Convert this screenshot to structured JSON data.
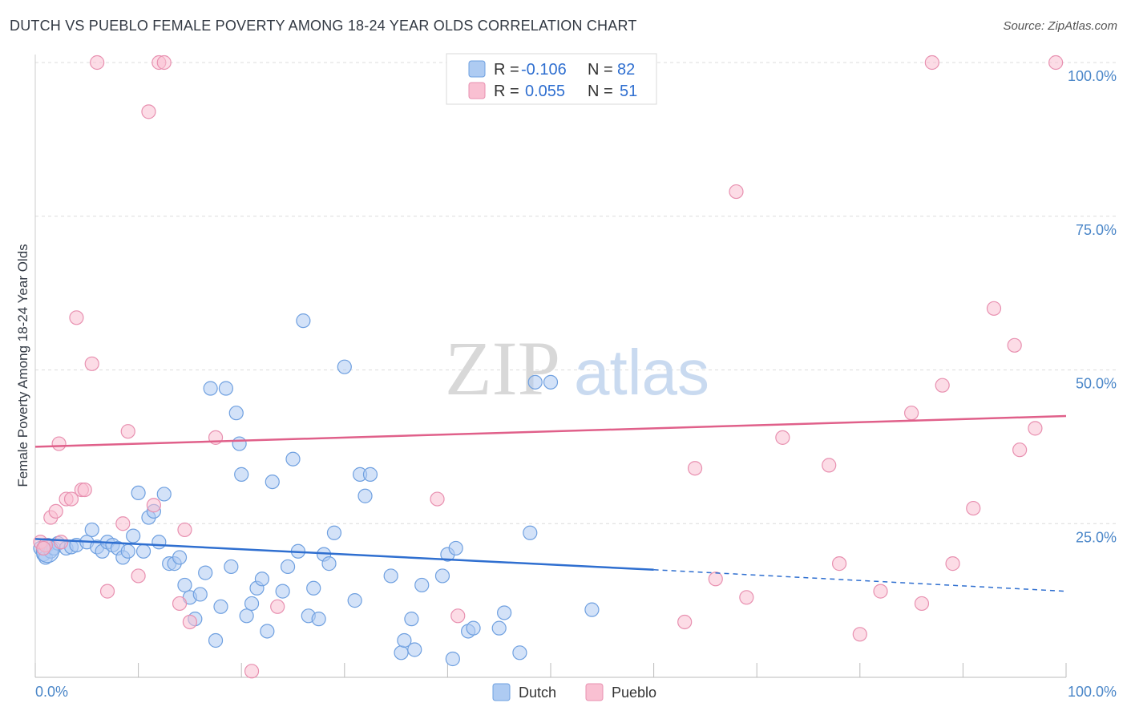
{
  "title": "DUTCH VS PUEBLO FEMALE POVERTY AMONG 18-24 YEAR OLDS CORRELATION CHART",
  "source": "Source: ZipAtlas.com",
  "watermark": {
    "zip": "ZIP",
    "atlas": "atlas"
  },
  "legend_top": {
    "rows": [
      {
        "r_label": "R =",
        "r_value": "-0.106",
        "n_label": "N =",
        "n_value": "82",
        "color": "#aecbf2"
      },
      {
        "r_label": "R =",
        "r_value": "0.055",
        "n_label": "N =",
        "n_value": "51",
        "color": "#f9c0d2"
      }
    ]
  },
  "legend_bottom": [
    {
      "label": "Dutch",
      "color": "#aecbf2"
    },
    {
      "label": "Pueblo",
      "color": "#f9c0d2"
    }
  ],
  "chart_data": {
    "type": "scatter",
    "title": "DUTCH VS PUEBLO FEMALE POVERTY AMONG 18-24 YEAR OLDS CORRELATION CHART",
    "xlabel": "",
    "ylabel": "Female Poverty Among 18-24 Year Olds",
    "xlim": [
      0,
      100
    ],
    "ylim": [
      0,
      100
    ],
    "x_tick_labels": [
      "0.0%",
      "100.0%"
    ],
    "y_tick_labels": [
      "25.0%",
      "50.0%",
      "75.0%",
      "100.0%"
    ],
    "y_ticks": [
      25,
      50,
      75,
      100
    ],
    "grid": true,
    "legend_position": "top-center",
    "series": [
      {
        "name": "Dutch",
        "color": "#6fa0e0",
        "fill": "#aecbf2",
        "points": [
          [
            0.5,
            21.0
          ],
          [
            0.8,
            20.0
          ],
          [
            1.0,
            19.5
          ],
          [
            1.2,
            21.5
          ],
          [
            1.5,
            20.5
          ],
          [
            1.8,
            21.0
          ],
          [
            2.2,
            21.8
          ],
          [
            3.0,
            21.0
          ],
          [
            3.5,
            21.2
          ],
          [
            4.0,
            21.5
          ],
          [
            5.0,
            22.0
          ],
          [
            5.5,
            24.0
          ],
          [
            6.0,
            21.2
          ],
          [
            6.5,
            20.5
          ],
          [
            7.0,
            22.0
          ],
          [
            7.5,
            21.5
          ],
          [
            8.0,
            21.0
          ],
          [
            8.5,
            19.5
          ],
          [
            9.0,
            20.5
          ],
          [
            9.5,
            23.0
          ],
          [
            10.0,
            30.0
          ],
          [
            10.5,
            20.5
          ],
          [
            11.0,
            26.0
          ],
          [
            11.5,
            27.0
          ],
          [
            12.0,
            22.0
          ],
          [
            12.5,
            29.8
          ],
          [
            13.0,
            18.5
          ],
          [
            13.5,
            18.5
          ],
          [
            14.0,
            19.5
          ],
          [
            14.5,
            15.0
          ],
          [
            15.0,
            13.0
          ],
          [
            15.5,
            9.5
          ],
          [
            16.0,
            13.5
          ],
          [
            16.5,
            17.0
          ],
          [
            17.0,
            47.0
          ],
          [
            17.5,
            6.0
          ],
          [
            18.0,
            11.5
          ],
          [
            18.5,
            47.0
          ],
          [
            19.0,
            18.0
          ],
          [
            19.5,
            43.0
          ],
          [
            19.8,
            38.0
          ],
          [
            20.0,
            33.0
          ],
          [
            20.5,
            10.0
          ],
          [
            21.0,
            12.0
          ],
          [
            21.5,
            14.5
          ],
          [
            22.0,
            16.0
          ],
          [
            22.5,
            7.5
          ],
          [
            23.0,
            31.8
          ],
          [
            24.0,
            14.0
          ],
          [
            24.5,
            18.0
          ],
          [
            25.0,
            35.5
          ],
          [
            25.5,
            20.5
          ],
          [
            26.0,
            58.0
          ],
          [
            26.5,
            10.0
          ],
          [
            27.0,
            14.5
          ],
          [
            27.5,
            9.5
          ],
          [
            28.0,
            20.0
          ],
          [
            28.5,
            18.5
          ],
          [
            29.0,
            23.5
          ],
          [
            30.0,
            50.5
          ],
          [
            31.0,
            12.5
          ],
          [
            31.5,
            33.0
          ],
          [
            32.5,
            33.0
          ],
          [
            32.0,
            29.5
          ],
          [
            34.5,
            16.5
          ],
          [
            35.5,
            4.0
          ],
          [
            35.8,
            6.0
          ],
          [
            36.5,
            9.5
          ],
          [
            36.8,
            4.5
          ],
          [
            37.5,
            15.0
          ],
          [
            39.5,
            16.5
          ],
          [
            40.5,
            3.0
          ],
          [
            40.0,
            20.0
          ],
          [
            40.8,
            21.0
          ],
          [
            42.0,
            7.5
          ],
          [
            42.5,
            8.0
          ],
          [
            45.0,
            8.0
          ],
          [
            45.5,
            10.5
          ],
          [
            47.0,
            4.0
          ],
          [
            48.0,
            23.5
          ],
          [
            48.5,
            48.0
          ],
          [
            50.0,
            48.0
          ],
          [
            54.0,
            11.0
          ]
        ],
        "trend": {
          "x": [
            0,
            60,
            100
          ],
          "y": [
            22.5,
            17.5,
            14.0
          ],
          "solid_until": 60
        }
      },
      {
        "name": "Pueblo",
        "color": "#e890b0",
        "fill": "#f9c0d2",
        "points": [
          [
            0.5,
            22.0
          ],
          [
            1.0,
            21.5
          ],
          [
            1.5,
            26.0
          ],
          [
            2.0,
            27.0
          ],
          [
            2.3,
            38.0
          ],
          [
            3.0,
            29.0
          ],
          [
            3.5,
            29.0
          ],
          [
            4.0,
            58.5
          ],
          [
            4.5,
            30.5
          ],
          [
            4.8,
            30.5
          ],
          [
            5.5,
            51.0
          ],
          [
            6.0,
            100.0
          ],
          [
            7.0,
            14.0
          ],
          [
            8.5,
            25.0
          ],
          [
            9.0,
            40.0
          ],
          [
            10.0,
            16.5
          ],
          [
            11.0,
            92.0
          ],
          [
            11.5,
            28.0
          ],
          [
            12.0,
            100.0
          ],
          [
            12.5,
            100.0
          ],
          [
            14.0,
            12.0
          ],
          [
            14.5,
            24.0
          ],
          [
            15.0,
            9.0
          ],
          [
            17.5,
            39.0
          ],
          [
            21.0,
            1.0
          ],
          [
            23.5,
            11.5
          ],
          [
            39.0,
            29.0
          ],
          [
            41.0,
            10.0
          ],
          [
            63.0,
            9.0
          ],
          [
            64.0,
            34.0
          ],
          [
            66.0,
            16.0
          ],
          [
            68.0,
            79.0
          ],
          [
            69.0,
            13.0
          ],
          [
            72.5,
            39.0
          ],
          [
            77.0,
            34.5
          ],
          [
            78.0,
            18.5
          ],
          [
            80.0,
            7.0
          ],
          [
            82.0,
            14.0
          ],
          [
            85.0,
            43.0
          ],
          [
            86.0,
            12.0
          ],
          [
            87.0,
            100.0
          ],
          [
            88.0,
            47.5
          ],
          [
            89.0,
            18.5
          ],
          [
            91.0,
            27.5
          ],
          [
            93.0,
            60.0
          ],
          [
            95.0,
            54.0
          ],
          [
            95.5,
            37.0
          ],
          [
            97.0,
            40.5
          ],
          [
            99.0,
            100.0
          ],
          [
            0.8,
            21.0
          ],
          [
            2.5,
            22.0
          ]
        ],
        "trend": {
          "x": [
            0,
            100
          ],
          "y": [
            37.5,
            42.5
          ],
          "solid_until": 100
        }
      }
    ]
  }
}
